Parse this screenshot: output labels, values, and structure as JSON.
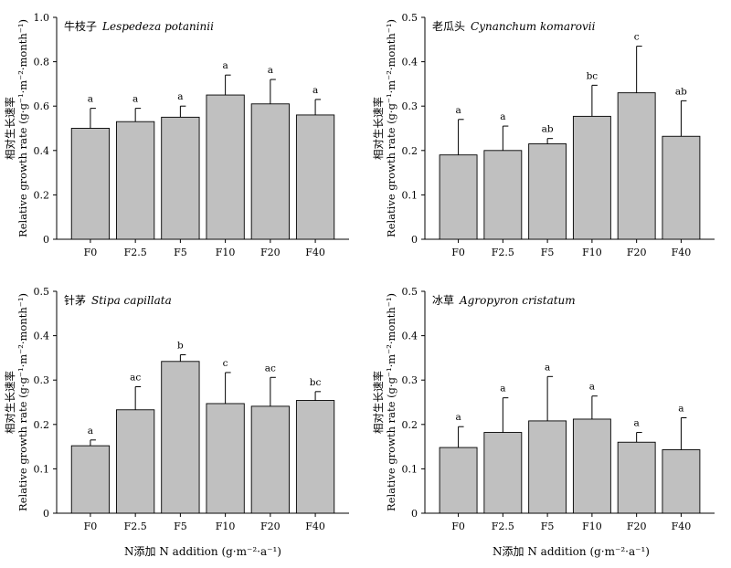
{
  "figure": {
    "x_axis_title": "N添加  N addition (g·m⁻²·a⁻¹)"
  },
  "chart_data": [
    {
      "type": "bar",
      "title_cn": "牛枝子",
      "title_latin": "Lespedeza potaninii",
      "ylabel_cn": "相对生长速率",
      "ylabel_en": "Relative growth rate (g·g⁻¹·m⁻²·month⁻¹)",
      "categories": [
        "F0",
        "F2.5",
        "F5",
        "F10",
        "F20",
        "F40"
      ],
      "values": [
        0.5,
        0.53,
        0.55,
        0.65,
        0.61,
        0.56
      ],
      "errors": [
        0.09,
        0.06,
        0.05,
        0.09,
        0.11,
        0.07
      ],
      "significance": [
        "a",
        "a",
        "a",
        "a",
        "a",
        "a"
      ],
      "ylim": [
        0,
        1.0
      ],
      "yticks": [
        0,
        0.2,
        0.4,
        0.6,
        0.8,
        1.0
      ],
      "ytick_labels": [
        "0",
        "0.2",
        "0.4",
        "0.6",
        "0.8",
        "1.0"
      ],
      "bar_color": "#c0c0c0"
    },
    {
      "type": "bar",
      "title_cn": "老瓜头",
      "title_latin": "Cynanchum komarovii",
      "ylabel_cn": "相对生长速率",
      "ylabel_en": "Relative growth rate (g·g⁻¹·m⁻²·month⁻¹)",
      "categories": [
        "F0",
        "F2.5",
        "F5",
        "F10",
        "F20",
        "F40"
      ],
      "values": [
        0.19,
        0.2,
        0.215,
        0.277,
        0.33,
        0.232
      ],
      "errors": [
        0.08,
        0.055,
        0.012,
        0.07,
        0.105,
        0.08
      ],
      "significance": [
        "a",
        "a",
        "ab",
        "bc",
        "c",
        "ab"
      ],
      "ylim": [
        0,
        0.5
      ],
      "yticks": [
        0,
        0.1,
        0.2,
        0.3,
        0.4,
        0.5
      ],
      "ytick_labels": [
        "0",
        "0.1",
        "0.2",
        "0.3",
        "0.4",
        "0.5"
      ],
      "bar_color": "#c0c0c0"
    },
    {
      "type": "bar",
      "title_cn": "针茅",
      "title_latin": "Stipa capillata",
      "ylabel_cn": "相对生长速率",
      "ylabel_en": "Relative growth rate (g·g⁻¹·m⁻²·month⁻¹)",
      "categories": [
        "F0",
        "F2.5",
        "F5",
        "F10",
        "F20",
        "F40"
      ],
      "values": [
        0.152,
        0.233,
        0.342,
        0.247,
        0.241,
        0.254
      ],
      "errors": [
        0.013,
        0.052,
        0.015,
        0.07,
        0.065,
        0.02
      ],
      "significance": [
        "a",
        "ac",
        "b",
        "c",
        "ac",
        "bc"
      ],
      "ylim": [
        0,
        0.5
      ],
      "yticks": [
        0,
        0.1,
        0.2,
        0.3,
        0.4,
        0.5
      ],
      "ytick_labels": [
        "0",
        "0.1",
        "0.2",
        "0.3",
        "0.4",
        "0.5"
      ],
      "bar_color": "#c0c0c0"
    },
    {
      "type": "bar",
      "title_cn": "冰草",
      "title_latin": "Agropyron cristatum",
      "ylabel_cn": "相对生长速率",
      "ylabel_en": "Relative growth rate (g·g⁻¹·m⁻²·month⁻¹)",
      "categories": [
        "F0",
        "F2.5",
        "F5",
        "F10",
        "F20",
        "F40"
      ],
      "values": [
        0.148,
        0.182,
        0.208,
        0.212,
        0.16,
        0.143
      ],
      "errors": [
        0.047,
        0.078,
        0.1,
        0.052,
        0.022,
        0.072
      ],
      "significance": [
        "a",
        "a",
        "a",
        "a",
        "a",
        "a"
      ],
      "ylim": [
        0,
        0.5
      ],
      "yticks": [
        0,
        0.1,
        0.2,
        0.3,
        0.4,
        0.5
      ],
      "ytick_labels": [
        "0",
        "0.1",
        "0.2",
        "0.3",
        "0.4",
        "0.5"
      ],
      "bar_color": "#c0c0c0"
    }
  ]
}
